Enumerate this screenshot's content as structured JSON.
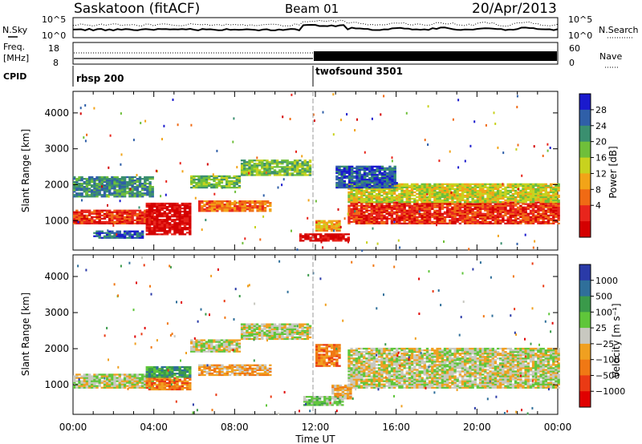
{
  "header": {
    "station": "Saskatoon (fitACF)",
    "beam": "Beam 01",
    "date": "20/Apr/2013"
  },
  "noise_panel": {
    "left_label": "N.Sky",
    "right_label": "N.Search",
    "y_ticks_left": [
      "10^5",
      "10^0"
    ],
    "y_ticks_right": [
      "10^5",
      "10^0"
    ]
  },
  "freq_panel": {
    "left_label_1": "Freq.",
    "left_label_2": "[MHz]",
    "right_label": "Nave",
    "left_ticks": [
      "18",
      "8"
    ],
    "right_ticks": [
      "60",
      "0"
    ],
    "cpid_label": "CPID",
    "programs": [
      {
        "name": "rbsp 200",
        "start_hour": 0
      },
      {
        "name": "twofsound 3501",
        "start_hour": 12
      }
    ]
  },
  "chart_data": [
    {
      "type": "heatmap",
      "parameter": "Power",
      "ylabel": "Slant Range [km]",
      "xlabel": "",
      "xlim_hours": [
        0,
        24
      ],
      "ylim_km": [
        180,
        4600
      ],
      "y_ticks": [
        "1000",
        "2000",
        "3000",
        "4000"
      ],
      "colorbar_label": "Power [dB]",
      "colorbar_ticks": [
        "28",
        "24",
        "20",
        "16",
        "12",
        "8",
        "4"
      ],
      "colorbar_colors": [
        "#1a1acd",
        "#2f5fa8",
        "#3a8f6f",
        "#6fbf3a",
        "#c8d21e",
        "#f2a418",
        "#f06a14",
        "#e8251c",
        "#d40000"
      ],
      "echo_bands": [
        {
          "t0": 0.0,
          "t1": 4.0,
          "r0": 900,
          "r1": 1300,
          "level": 7
        },
        {
          "t0": 0.0,
          "t1": 4.0,
          "r0": 1650,
          "r1": 2200,
          "level": 2
        },
        {
          "t0": 3.6,
          "t1": 5.8,
          "r0": 600,
          "r1": 1500,
          "level": 8
        },
        {
          "t0": 1.0,
          "t1": 3.5,
          "r0": 500,
          "r1": 700,
          "level": 1
        },
        {
          "t0": 5.8,
          "t1": 8.3,
          "r0": 1900,
          "r1": 2250,
          "level": 3
        },
        {
          "t0": 8.3,
          "t1": 11.8,
          "r0": 2250,
          "r1": 2700,
          "level": 3
        },
        {
          "t0": 6.2,
          "t1": 9.8,
          "r0": 1250,
          "r1": 1550,
          "level": 6
        },
        {
          "t0": 11.2,
          "t1": 13.6,
          "r0": 420,
          "r1": 620,
          "level": 8
        },
        {
          "t0": 12.0,
          "t1": 13.2,
          "r0": 700,
          "r1": 1000,
          "level": 5
        },
        {
          "t0": 13.6,
          "t1": 24.0,
          "r0": 900,
          "r1": 1500,
          "level": 7
        },
        {
          "t0": 13.6,
          "t1": 24.0,
          "r0": 1500,
          "r1": 2000,
          "level": 4
        },
        {
          "t0": 13.0,
          "t1": 16.0,
          "r0": 1900,
          "r1": 2500,
          "level": 1
        }
      ]
    },
    {
      "type": "heatmap",
      "parameter": "Velocity",
      "ylabel": "Slant Range [km]",
      "xlabel": "Time UT",
      "xlim_hours": [
        0,
        24
      ],
      "ylim_km": [
        180,
        4600
      ],
      "y_ticks": [
        "1000",
        "2000",
        "3000",
        "4000"
      ],
      "x_ticks": [
        "00:00",
        "04:00",
        "08:00",
        "12:00",
        "16:00",
        "20:00",
        "00:00"
      ],
      "colorbar_label": "Velocity [m s⁻¹]",
      "colorbar_ticks": [
        "1000",
        "500",
        "100",
        "25",
        "−25",
        "−100",
        "−500",
        "−1000"
      ],
      "colorbar_colors": [
        "#2a3aa8",
        "#2f6f9a",
        "#3a9a4a",
        "#5fc63a",
        "#c8c8c0",
        "#f0a020",
        "#f07814",
        "#ea3a14",
        "#e00000"
      ],
      "echo_bands": [
        {
          "t0": 0.0,
          "t1": 4.0,
          "r0": 900,
          "r1": 1300,
          "level": 4
        },
        {
          "t0": 3.6,
          "t1": 5.8,
          "r0": 850,
          "r1": 1200,
          "level": 6
        },
        {
          "t0": 3.6,
          "t1": 5.8,
          "r0": 1200,
          "r1": 1500,
          "level": 2
        },
        {
          "t0": 5.8,
          "t1": 8.3,
          "r0": 1900,
          "r1": 2250,
          "level": 4
        },
        {
          "t0": 8.3,
          "t1": 11.8,
          "r0": 2250,
          "r1": 2700,
          "level": 4
        },
        {
          "t0": 6.2,
          "t1": 9.8,
          "r0": 1250,
          "r1": 1550,
          "level": 5
        },
        {
          "t0": 11.4,
          "t1": 13.4,
          "r0": 420,
          "r1": 650,
          "level": 3
        },
        {
          "t0": 12.8,
          "t1": 13.8,
          "r0": 600,
          "r1": 1000,
          "level": 5
        },
        {
          "t0": 12.0,
          "t1": 13.2,
          "r0": 1500,
          "r1": 2100,
          "level": 6
        },
        {
          "t0": 13.6,
          "t1": 24.0,
          "r0": 900,
          "r1": 2000,
          "level": 4
        }
      ]
    }
  ]
}
